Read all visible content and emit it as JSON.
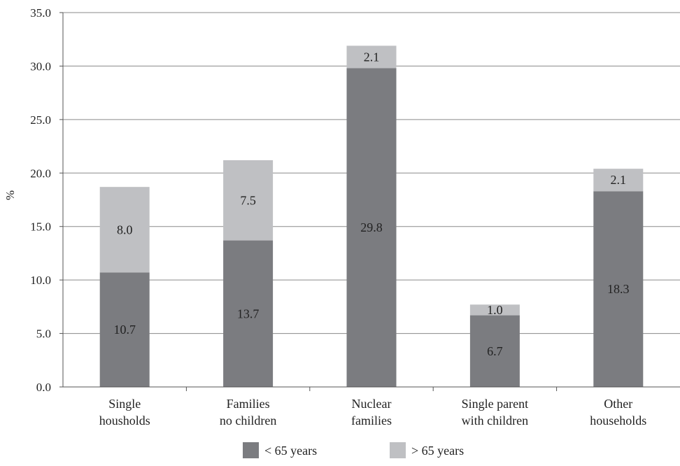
{
  "chart_data": {
    "type": "bar",
    "stacked": true,
    "ylabel": "%",
    "ylim": [
      0,
      35
    ],
    "y_ticks": [
      "0.0",
      "5.0",
      "10.0",
      "15.0",
      "20.0",
      "25.0",
      "30.0",
      "35.0"
    ],
    "grid": true,
    "legend_placement": "bottom",
    "categories": [
      [
        "Single",
        "housholds"
      ],
      [
        "Families",
        "no children"
      ],
      [
        "Nuclear",
        "families"
      ],
      [
        "Single parent",
        "with children"
      ],
      [
        "Other",
        "households"
      ]
    ],
    "series": [
      {
        "name": "< 65 years",
        "color": "#7b7c80",
        "values": [
          10.7,
          13.7,
          29.8,
          6.7,
          18.3
        ],
        "labels": [
          "10.7",
          "13.7",
          "29.8",
          "6.7",
          "18.3"
        ]
      },
      {
        "name": "> 65 years",
        "color": "#bfc0c3",
        "values": [
          8.0,
          7.5,
          2.1,
          1.0,
          2.1
        ],
        "labels": [
          "8.0",
          "7.5",
          "2.1",
          "1.0",
          "2.1"
        ]
      }
    ]
  }
}
